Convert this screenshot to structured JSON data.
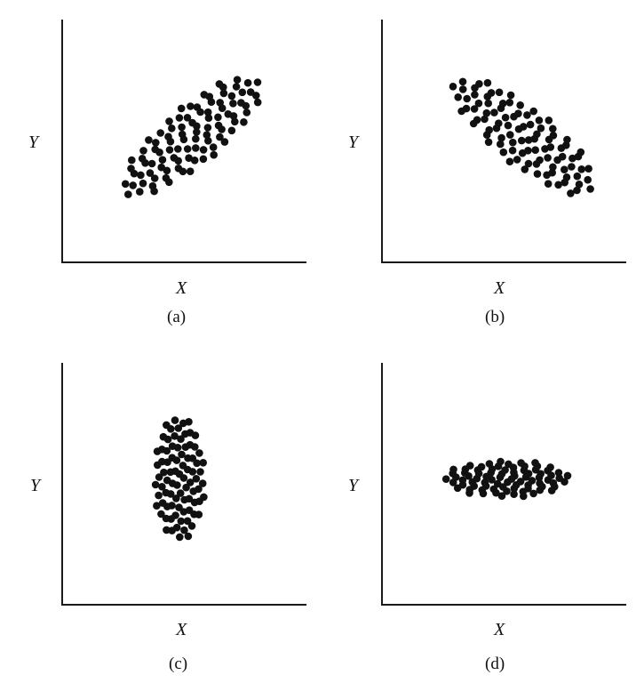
{
  "chart_data": [
    {
      "type": "scatter",
      "caption": "(a)",
      "xlabel": "X",
      "ylabel": "Y",
      "pattern": "positive correlation",
      "center": [
        0.53,
        0.52
      ],
      "major_axis_angle_deg": 40,
      "semi_axes": [
        0.36,
        0.12
      ],
      "point_count": 95
    },
    {
      "type": "scatter",
      "caption": "(b)",
      "xlabel": "X",
      "ylabel": "Y",
      "pattern": "negative correlation",
      "center": [
        0.58,
        0.52
      ],
      "major_axis_angle_deg": -38,
      "semi_axes": [
        0.36,
        0.12
      ],
      "point_count": 95
    },
    {
      "type": "scatter",
      "caption": "(c)",
      "xlabel": "X",
      "ylabel": "Y",
      "pattern": "no correlation (vertical spread)",
      "center": [
        0.48,
        0.52
      ],
      "major_axis_angle_deg": 90,
      "semi_axes": [
        0.26,
        0.105
      ],
      "point_count": 85
    },
    {
      "type": "scatter",
      "caption": "(d)",
      "xlabel": "X",
      "ylabel": "Y",
      "pattern": "no correlation (horizontal spread)",
      "center": [
        0.51,
        0.52
      ],
      "major_axis_angle_deg": 0,
      "semi_axes": [
        0.26,
        0.075
      ],
      "point_count": 80
    }
  ]
}
